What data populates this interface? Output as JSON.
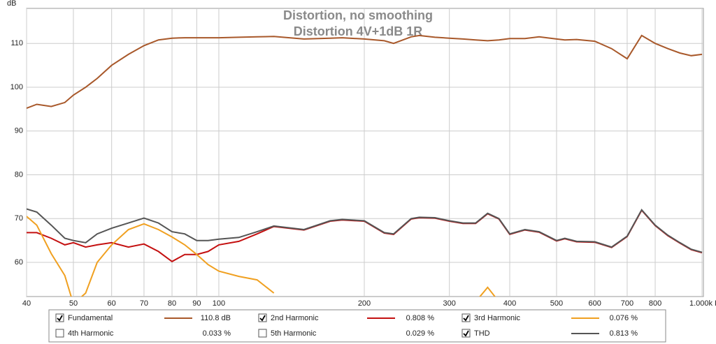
{
  "chart_data": {
    "type": "line",
    "title": "Distortion, no smoothing",
    "subtitle": "Distortion 4V+1dB 1R",
    "y_label": "dB",
    "log_x": true,
    "grid": true,
    "xlim": [
      40,
      1000
    ],
    "ylim": [
      52.2,
      118
    ],
    "xticks": [
      40,
      50,
      60,
      70,
      80,
      90,
      100,
      200,
      300,
      400,
      500,
      600,
      700,
      800,
      {
        "value": 1000,
        "label": "1.000k Hz"
      }
    ],
    "yticks": [
      60,
      70,
      80,
      90,
      100,
      110
    ],
    "x": [
      40,
      42,
      45,
      48,
      50,
      53,
      56,
      60,
      65,
      70,
      75,
      80,
      85,
      90,
      95,
      100,
      110,
      120,
      130,
      150,
      170,
      180,
      200,
      220,
      230,
      250,
      260,
      280,
      300,
      320,
      340,
      360,
      380,
      400,
      430,
      460,
      500,
      520,
      550,
      600,
      650,
      700,
      750,
      800,
      850,
      900,
      950,
      1000
    ],
    "series": [
      {
        "name": "Fundamental",
        "color": "#a8582a",
        "label_color": "#8b1a1a",
        "checked": true,
        "readout": "110.8 dB",
        "values": [
          95.2,
          96.1,
          95.6,
          96.5,
          98.2,
          100,
          102,
          105,
          107.5,
          109.5,
          110.8,
          111.2,
          111.3,
          111.3,
          111.3,
          111.3,
          111.4,
          111.5,
          111.6,
          111.0,
          111.2,
          111.3,
          111.0,
          110.6,
          110.0,
          111.5,
          111.8,
          111.4,
          111.2,
          111.0,
          110.8,
          110.6,
          110.8,
          111.1,
          111.1,
          111.5,
          111.0,
          110.8,
          110.9,
          110.5,
          108.8,
          106.5,
          111.8,
          110.0,
          108.8,
          107.8,
          107.2,
          107.5
        ]
      },
      {
        "name": "2nd Harmonic",
        "color": "#c41010",
        "label_color": "#8b1a1a",
        "checked": true,
        "readout": "0.808 %",
        "values": [
          66.8,
          66.8,
          65.5,
          64,
          64.5,
          63.5,
          64,
          64.5,
          63.5,
          64.2,
          62.5,
          60.2,
          61.8,
          61.8,
          62.5,
          64,
          64.8,
          66.5,
          68.2,
          67.4,
          69.4,
          69.7,
          69.4,
          66.7,
          66.4,
          69.9,
          70.2,
          70.1,
          69.4,
          68.9,
          68.9,
          71.1,
          69.9,
          66.4,
          67.4,
          66.9,
          64.9,
          65.4,
          64.7,
          64.6,
          63.4,
          65.9,
          71.9,
          68.4,
          66.1,
          64.4,
          62.9,
          62.2
        ]
      },
      {
        "name": "3rd Harmonic",
        "color": "#f0a020",
        "label_color": "#e08a00",
        "checked": true,
        "readout": "0.076 %",
        "values": [
          70.5,
          68.5,
          62,
          57,
          50.5,
          53,
          60,
          64,
          67.5,
          68.8,
          67.5,
          65.8,
          64,
          61.8,
          59.5,
          58,
          56.8,
          56,
          53,
          null,
          null,
          null,
          null,
          null,
          null,
          null,
          null,
          null,
          null,
          null,
          51,
          54.3,
          51,
          null,
          null,
          null,
          null,
          null,
          null,
          null,
          null,
          null,
          null,
          null,
          null,
          null,
          null,
          null
        ]
      },
      {
        "name": "4th Harmonic",
        "color": "#b8c020",
        "label_color": "#a8b818",
        "checked": false,
        "readout": "0.033 %"
      },
      {
        "name": "5th Harmonic",
        "color": "#a0c020",
        "label_color": "#98b818",
        "checked": false,
        "readout": "0.029 %"
      },
      {
        "name": "THD",
        "color": "#555555",
        "label_color": "#222222",
        "checked": true,
        "readout": "0.813 %",
        "values": [
          72.2,
          71.5,
          68.5,
          65.5,
          65,
          64.5,
          66.5,
          67.8,
          69,
          70.1,
          69,
          67,
          66.5,
          65,
          65,
          65.3,
          65.7,
          67,
          68.3,
          67.5,
          69.5,
          69.8,
          69.5,
          66.8,
          66.5,
          70,
          70.3,
          70.2,
          69.5,
          69,
          69,
          71.2,
          70,
          66.5,
          67.5,
          67,
          65,
          65.5,
          64.8,
          64.7,
          63.5,
          66,
          72,
          68.5,
          66.2,
          64.5,
          63,
          62.3
        ]
      }
    ]
  }
}
